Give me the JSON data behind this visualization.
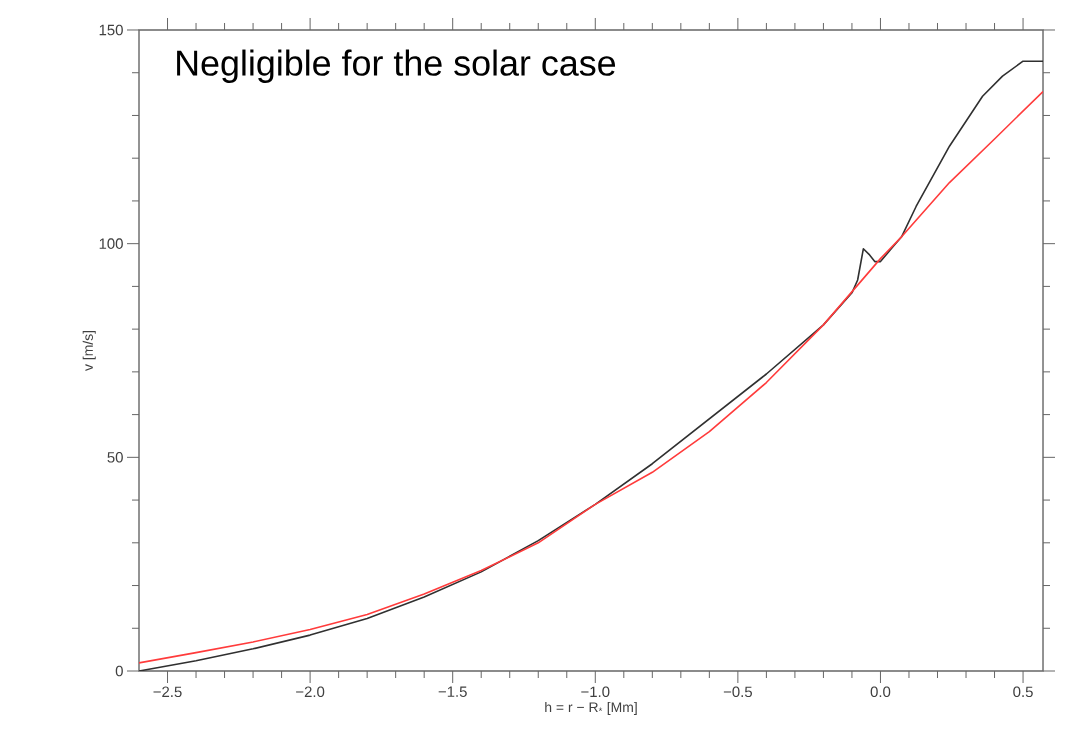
{
  "chart_data": {
    "type": "line",
    "xlabel": "h = r − R$_{*}$ [Mm]",
    "ylabel": "v [m/s]",
    "annotations": [
      "Negligible for the solar case"
    ],
    "xlim": [
      -2.6,
      0.57
    ],
    "ylim": [
      0,
      150
    ],
    "xticks": [
      {
        "value": -2.5,
        "label": "−2.5"
      },
      {
        "value": -2.0,
        "label": "−2.0"
      },
      {
        "value": -1.5,
        "label": "−1.5"
      },
      {
        "value": -1.0,
        "label": "−1.0"
      },
      {
        "value": -0.5,
        "label": "−0.5"
      },
      {
        "value": 0.0,
        "label": "0.0"
      },
      {
        "value": 0.5,
        "label": "0.5"
      }
    ],
    "yticks": [
      0,
      50,
      100,
      150
    ],
    "grid": false,
    "marker": "none",
    "line_style": "solid",
    "series": [
      {
        "color": "#303030",
        "x": [
          -2.6,
          -2.4,
          -2.2,
          -2.0,
          -1.8,
          -1.6,
          -1.4,
          -1.2,
          -1.0,
          -0.8,
          -0.6,
          -0.4,
          -0.2,
          -0.1,
          -0.08,
          -0.06,
          -0.04,
          -0.02,
          0.0,
          0.04,
          0.074,
          0.125,
          0.242,
          0.358,
          0.428,
          0.5,
          0.57
        ],
        "values": [
          0,
          2.4,
          5.2,
          8.4,
          12.3,
          17.3,
          23.2,
          30.5,
          39,
          48.5,
          59,
          69.5,
          81,
          88.5,
          91.5,
          98.8,
          97.5,
          95.8,
          95.8,
          99,
          101.6,
          108.7,
          122.8,
          134.5,
          139.2,
          142.7,
          142.7
        ]
      },
      {
        "color": "#ff3b3b",
        "x": [
          -2.6,
          -2.4,
          -2.2,
          -2.0,
          -1.8,
          -1.6,
          -1.4,
          -1.2,
          -1.0,
          -0.8,
          -0.6,
          -0.4,
          -0.2,
          0.0,
          0.074,
          0.242,
          0.4,
          0.57
        ],
        "values": [
          1.9,
          4.3,
          6.8,
          9.7,
          13.2,
          18.0,
          23.5,
          30,
          39,
          46.5,
          56,
          67.5,
          81,
          96.5,
          101.6,
          114.3,
          124.5,
          135.6
        ]
      }
    ]
  }
}
